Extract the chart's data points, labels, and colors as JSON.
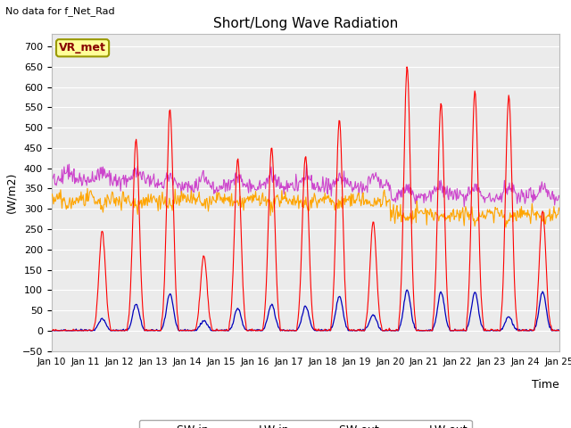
{
  "title": "Short/Long Wave Radiation",
  "xlabel": "Time",
  "ylabel": "(W/m2)",
  "top_left_text": "No data for f_Net_Rad",
  "legend_label_text": "VR_met",
  "n_days": 15,
  "ylim": [
    -50,
    730
  ],
  "yticks": [
    -50,
    0,
    50,
    100,
    150,
    200,
    250,
    300,
    350,
    400,
    450,
    500,
    550,
    600,
    650,
    700
  ],
  "xtick_labels": [
    "Jan 10",
    "Jan 11",
    "Jan 12",
    "Jan 13",
    "Jan 14",
    "Jan 15",
    "Jan 16",
    "Jan 17",
    "Jan 18",
    "Jan 19",
    "Jan 20",
    "Jan 21",
    "Jan 22",
    "Jan 23",
    "Jan 24",
    "Jan 25"
  ],
  "colors": {
    "SW_in": "#ff0000",
    "LW_in": "#ffa500",
    "SW_out": "#0000bb",
    "LW_out": "#cc44cc"
  },
  "background_plot": "#ebebeb",
  "background_fig": "#ffffff",
  "grid_color": "#ffffff",
  "vr_box_facecolor": "#ffff99",
  "vr_box_edgecolor": "#999900",
  "vr_text_color": "#880000"
}
